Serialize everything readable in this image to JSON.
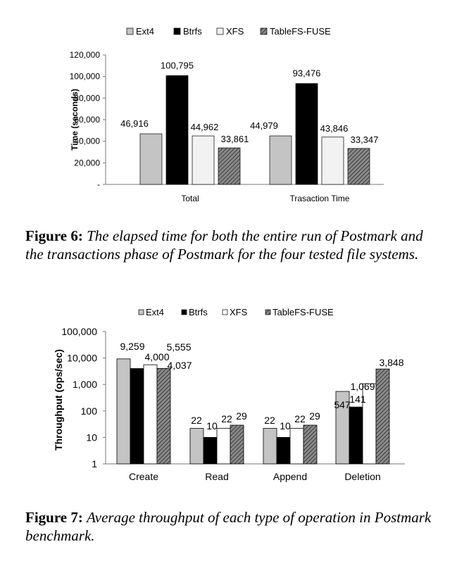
{
  "figure6": {
    "caption_label": "Figure 6:",
    "caption_text": "The elapsed time for both the entire run of Postmark and the transactions phase of Postmark for the four tested file systems.",
    "chart_data": {
      "type": "bar",
      "categories": [
        "Total",
        "Trasaction Time"
      ],
      "series": [
        {
          "name": "Ext4",
          "values": [
            46916,
            44979
          ],
          "labels": [
            "46,916",
            "44,979"
          ],
          "fill": "#c4c4c4"
        },
        {
          "name": "Btrfs",
          "values": [
            100795,
            93476
          ],
          "labels": [
            "100,795",
            "93,476"
          ],
          "fill": "#000000"
        },
        {
          "name": "XFS",
          "values": [
            44962,
            43846
          ],
          "labels": [
            "44,962",
            "43,846"
          ],
          "fill": "#f2f2f2"
        },
        {
          "name": "TableFS-FUSE",
          "values": [
            33861,
            33347
          ],
          "labels": [
            "33,861",
            "33,347"
          ],
          "fill": "hatch"
        }
      ],
      "ylabel": "Time (seconds)",
      "xlabel": "",
      "ylim": [
        0,
        120000
      ],
      "yticks": [
        0,
        20000,
        40000,
        60000,
        80000,
        100000,
        120000
      ],
      "ytick_labels": [
        "-",
        "20,000",
        "40,000",
        "60,000",
        "80,000",
        "100,000",
        "120,000"
      ],
      "legend_position": "top",
      "grid": false
    }
  },
  "figure7": {
    "caption_label": "Figure 7:",
    "caption_text": "Average throughput of each type of operation in Postmark benchmark.",
    "chart_data": {
      "type": "bar",
      "categories": [
        "Create",
        "Read",
        "Append",
        "Deletion"
      ],
      "series": [
        {
          "name": "Ext4",
          "values": [
            9259,
            22,
            22,
            547
          ],
          "labels": [
            "9,259",
            "22",
            "22",
            "547"
          ],
          "fill": "#c4c4c4"
        },
        {
          "name": "Btrfs",
          "values": [
            4000,
            10,
            10,
            141
          ],
          "labels": [
            "4,000",
            "10",
            "10",
            "141"
          ],
          "fill": "#000000"
        },
        {
          "name": "XFS",
          "values": [
            5555,
            22,
            22,
            1069
          ],
          "labels": [
            "5,555",
            "22",
            "22",
            "1,069"
          ],
          "fill": "#ffffff"
        },
        {
          "name": "TableFS-FUSE",
          "values": [
            4037,
            29,
            29,
            3848
          ],
          "labels": [
            "4,037",
            "29",
            "29",
            "3,848"
          ],
          "fill": "hatch"
        }
      ],
      "ylabel": "Throughput (ops/sec)",
      "xlabel": "",
      "yscale": "log",
      "ylim": [
        1,
        100000
      ],
      "yticks": [
        1,
        10,
        100,
        1000,
        10000,
        100000
      ],
      "ytick_labels": [
        "1",
        "10",
        "100",
        "1,000",
        "10,000",
        "100,000"
      ],
      "legend_position": "top",
      "grid": false
    }
  }
}
